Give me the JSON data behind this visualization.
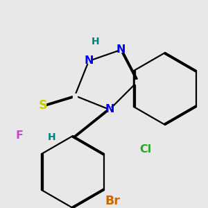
{
  "background_color": "#e8e8e8",
  "atom_colors": {
    "N": "#0000ee",
    "S": "#cccc00",
    "H_label": "#008080",
    "Cl": "#22aa22",
    "F": "#cc44cc",
    "Br": "#cc6600",
    "C": "#000000"
  },
  "bond_color": "#000000",
  "bond_width": 1.6,
  "title": ""
}
